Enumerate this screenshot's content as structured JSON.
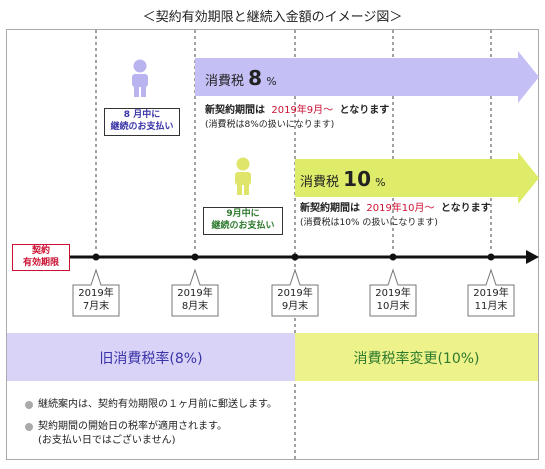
{
  "title": "＜契約有効期限と継続入金額のイメージ図＞",
  "colors": {
    "purple": "#c4bff5",
    "green": "#dfec6a",
    "red": "#cc1133",
    "band_left": "#d8d3f7",
    "band_right": "#eef28a"
  },
  "old_tax": {
    "label_prefix": "消費税",
    "rate": "8",
    "unit": "%",
    "line1_a": "新契約期間は",
    "line1_b": "2019年9月～",
    "line1_c": "となります",
    "line2": "(消費税は8%の扱いになります)"
  },
  "new_tax": {
    "label_prefix": "消費税",
    "rate": "10",
    "unit": "%",
    "line1_a": "新契約期間は",
    "line1_b": "2019年10月～",
    "line1_c": "となります",
    "line2": "(消費税は10% の扱いになります)"
  },
  "person_aug": {
    "line1": "8 月中に",
    "line2": "継続のお支払い"
  },
  "person_sep": {
    "line1": "9月中に",
    "line2": "継続のお支払い"
  },
  "contract_label": {
    "line1": "契約",
    "line2": "有効期限"
  },
  "ticks": [
    {
      "year": "2019年",
      "month": "7月末"
    },
    {
      "year": "2019年",
      "month": "8月末"
    },
    {
      "year": "2019年",
      "month": "9月末"
    },
    {
      "year": "2019年",
      "month": "10月末"
    },
    {
      "year": "2019年",
      "month": "11月末"
    }
  ],
  "band": {
    "left": "旧消費税率(8%)",
    "right": "消費税率変更(10%)"
  },
  "notes": [
    "継続案内は、契約有効期限の１ヶ月前に郵送します。",
    "契約期間の開始日の税率が適用されます。",
    "(お支払い日ではございません)"
  ]
}
